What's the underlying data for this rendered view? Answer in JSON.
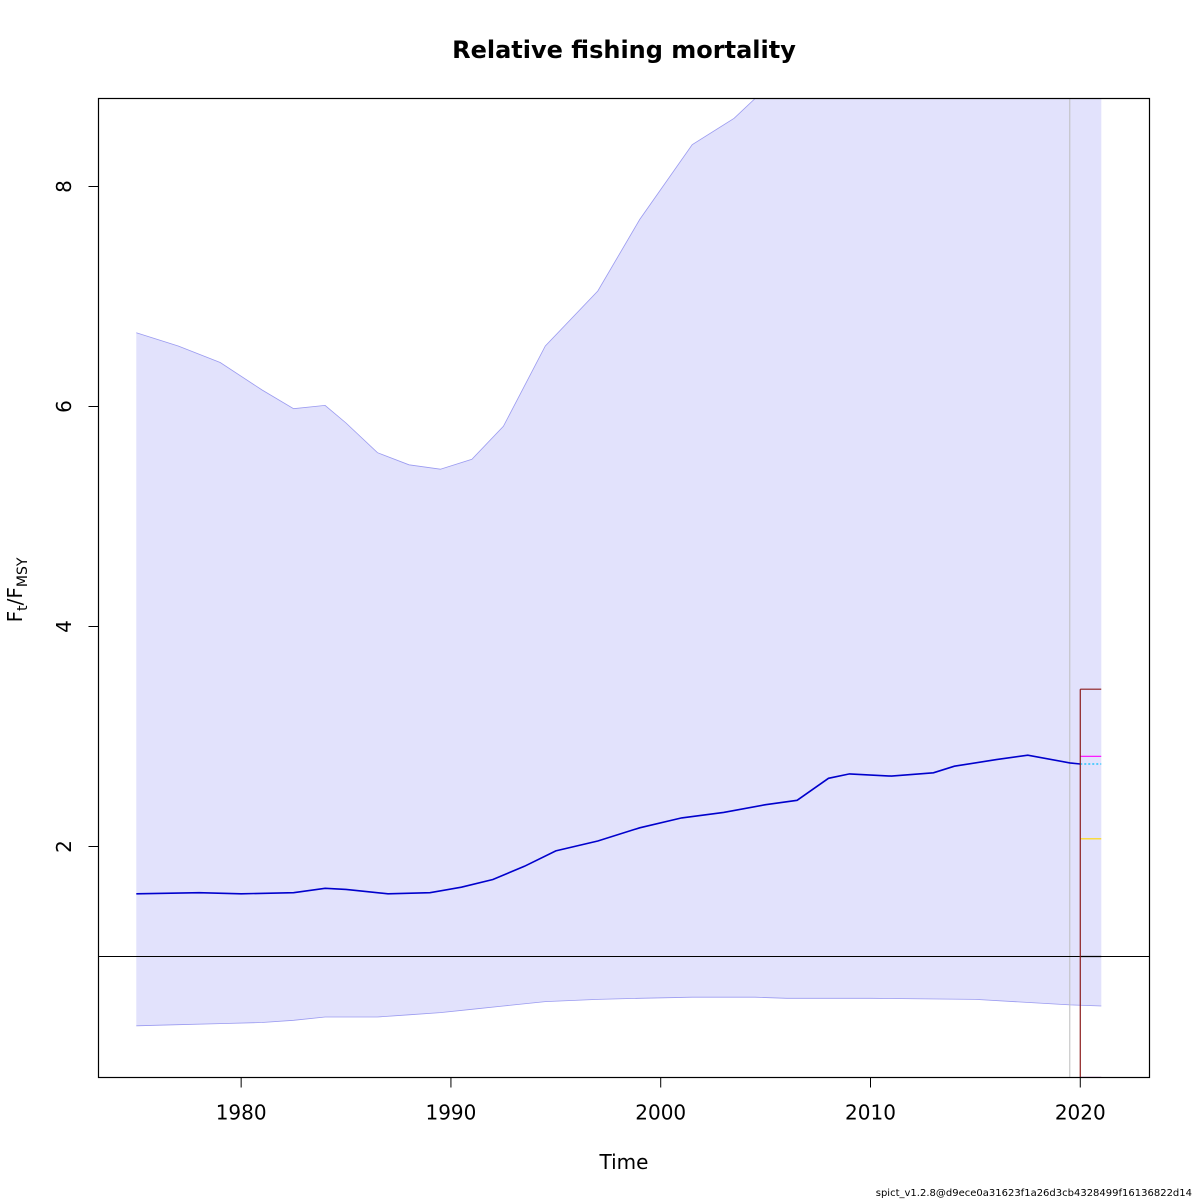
{
  "chart_data": {
    "type": "line",
    "title": "Relative fishing mortality",
    "xlabel": "Time",
    "ylabel": {
      "main": "F",
      "sub1": "t",
      "sep": "/F",
      "sub2": "MSY"
    },
    "xlim": [
      1973.2,
      2023.3
    ],
    "ylim": [
      -0.1,
      8.8
    ],
    "x_ticks": [
      1980,
      1990,
      2000,
      2010,
      2020
    ],
    "y_ticks": [
      2,
      4,
      6,
      8
    ],
    "grid": false,
    "reference_line": {
      "y": 1.0,
      "color": "#000000"
    },
    "vertical_line": {
      "x": 2019.5,
      "color": "#bebebe"
    },
    "ci_band": {
      "color": "#e2e2fc",
      "edge_color": "#9a9af0",
      "x": [
        1975,
        1977,
        1979,
        1981,
        1982.5,
        1984,
        1985,
        1986.5,
        1988,
        1989.5,
        1991,
        1992.5,
        1994.5,
        1997,
        1999,
        2001.5,
        2003.5,
        2004.5,
        2006,
        2010,
        2015,
        2019.5,
        2021
      ],
      "upper": [
        6.67,
        6.55,
        6.4,
        6.15,
        5.98,
        6.01,
        5.85,
        5.58,
        5.47,
        5.43,
        5.52,
        5.82,
        6.55,
        7.05,
        7.7,
        8.38,
        8.62,
        8.8,
        8.8,
        8.8,
        8.8,
        8.8,
        8.8
      ],
      "lower": [
        0.37,
        0.38,
        0.39,
        0.4,
        0.42,
        0.45,
        0.45,
        0.45,
        0.47,
        0.49,
        0.52,
        0.55,
        0.59,
        0.61,
        0.62,
        0.63,
        0.63,
        0.63,
        0.62,
        0.62,
        0.61,
        0.56,
        0.55
      ]
    },
    "series": [
      {
        "color": "#0000cc",
        "x": [
          1975,
          1978,
          1980,
          1982.5,
          1984,
          1985,
          1987,
          1989,
          1990.5,
          1992,
          1993.5,
          1995,
          1997,
          1999,
          2001,
          2003,
          2005,
          2006.5,
          2008,
          2009,
          2011,
          2013,
          2014,
          2016,
          2017.5,
          2019.5,
          2020
        ],
        "y": [
          1.57,
          1.58,
          1.57,
          1.58,
          1.62,
          1.61,
          1.57,
          1.58,
          1.63,
          1.7,
          1.82,
          1.96,
          2.05,
          2.17,
          2.26,
          2.31,
          2.38,
          2.42,
          2.62,
          2.66,
          2.64,
          2.67,
          2.73,
          2.79,
          2.83,
          2.76,
          2.75
        ]
      }
    ],
    "forecast": [
      {
        "color": "#8b1a1a",
        "x": [
          2020,
          2021
        ],
        "y": [
          3.43,
          3.43
        ]
      },
      {
        "color": "#ff00ff",
        "x": [
          2020,
          2021
        ],
        "y": [
          2.82,
          2.82
        ]
      },
      {
        "color": "#00bfff",
        "x": [
          2020,
          2021
        ],
        "y": [
          2.75,
          2.75
        ],
        "dashed": true
      },
      {
        "color": "#ffd700",
        "x": [
          2020,
          2021
        ],
        "y": [
          2.07,
          2.07
        ]
      },
      {
        "color": "#000000",
        "x": [
          2020,
          2021
        ],
        "y": [
          1.0,
          1.0
        ]
      },
      {
        "color": "#8b008b",
        "x": [
          2020,
          2021
        ],
        "y": [
          -0.1,
          -0.1
        ]
      }
    ],
    "forecast_drop": {
      "color": "#8b1a1a",
      "x": 2020,
      "from": 3.43,
      "to": -0.1
    }
  },
  "footer_text": "spict_v1.2.8@d9ece0a31623f1a26d3cb4328499f16136822d14"
}
